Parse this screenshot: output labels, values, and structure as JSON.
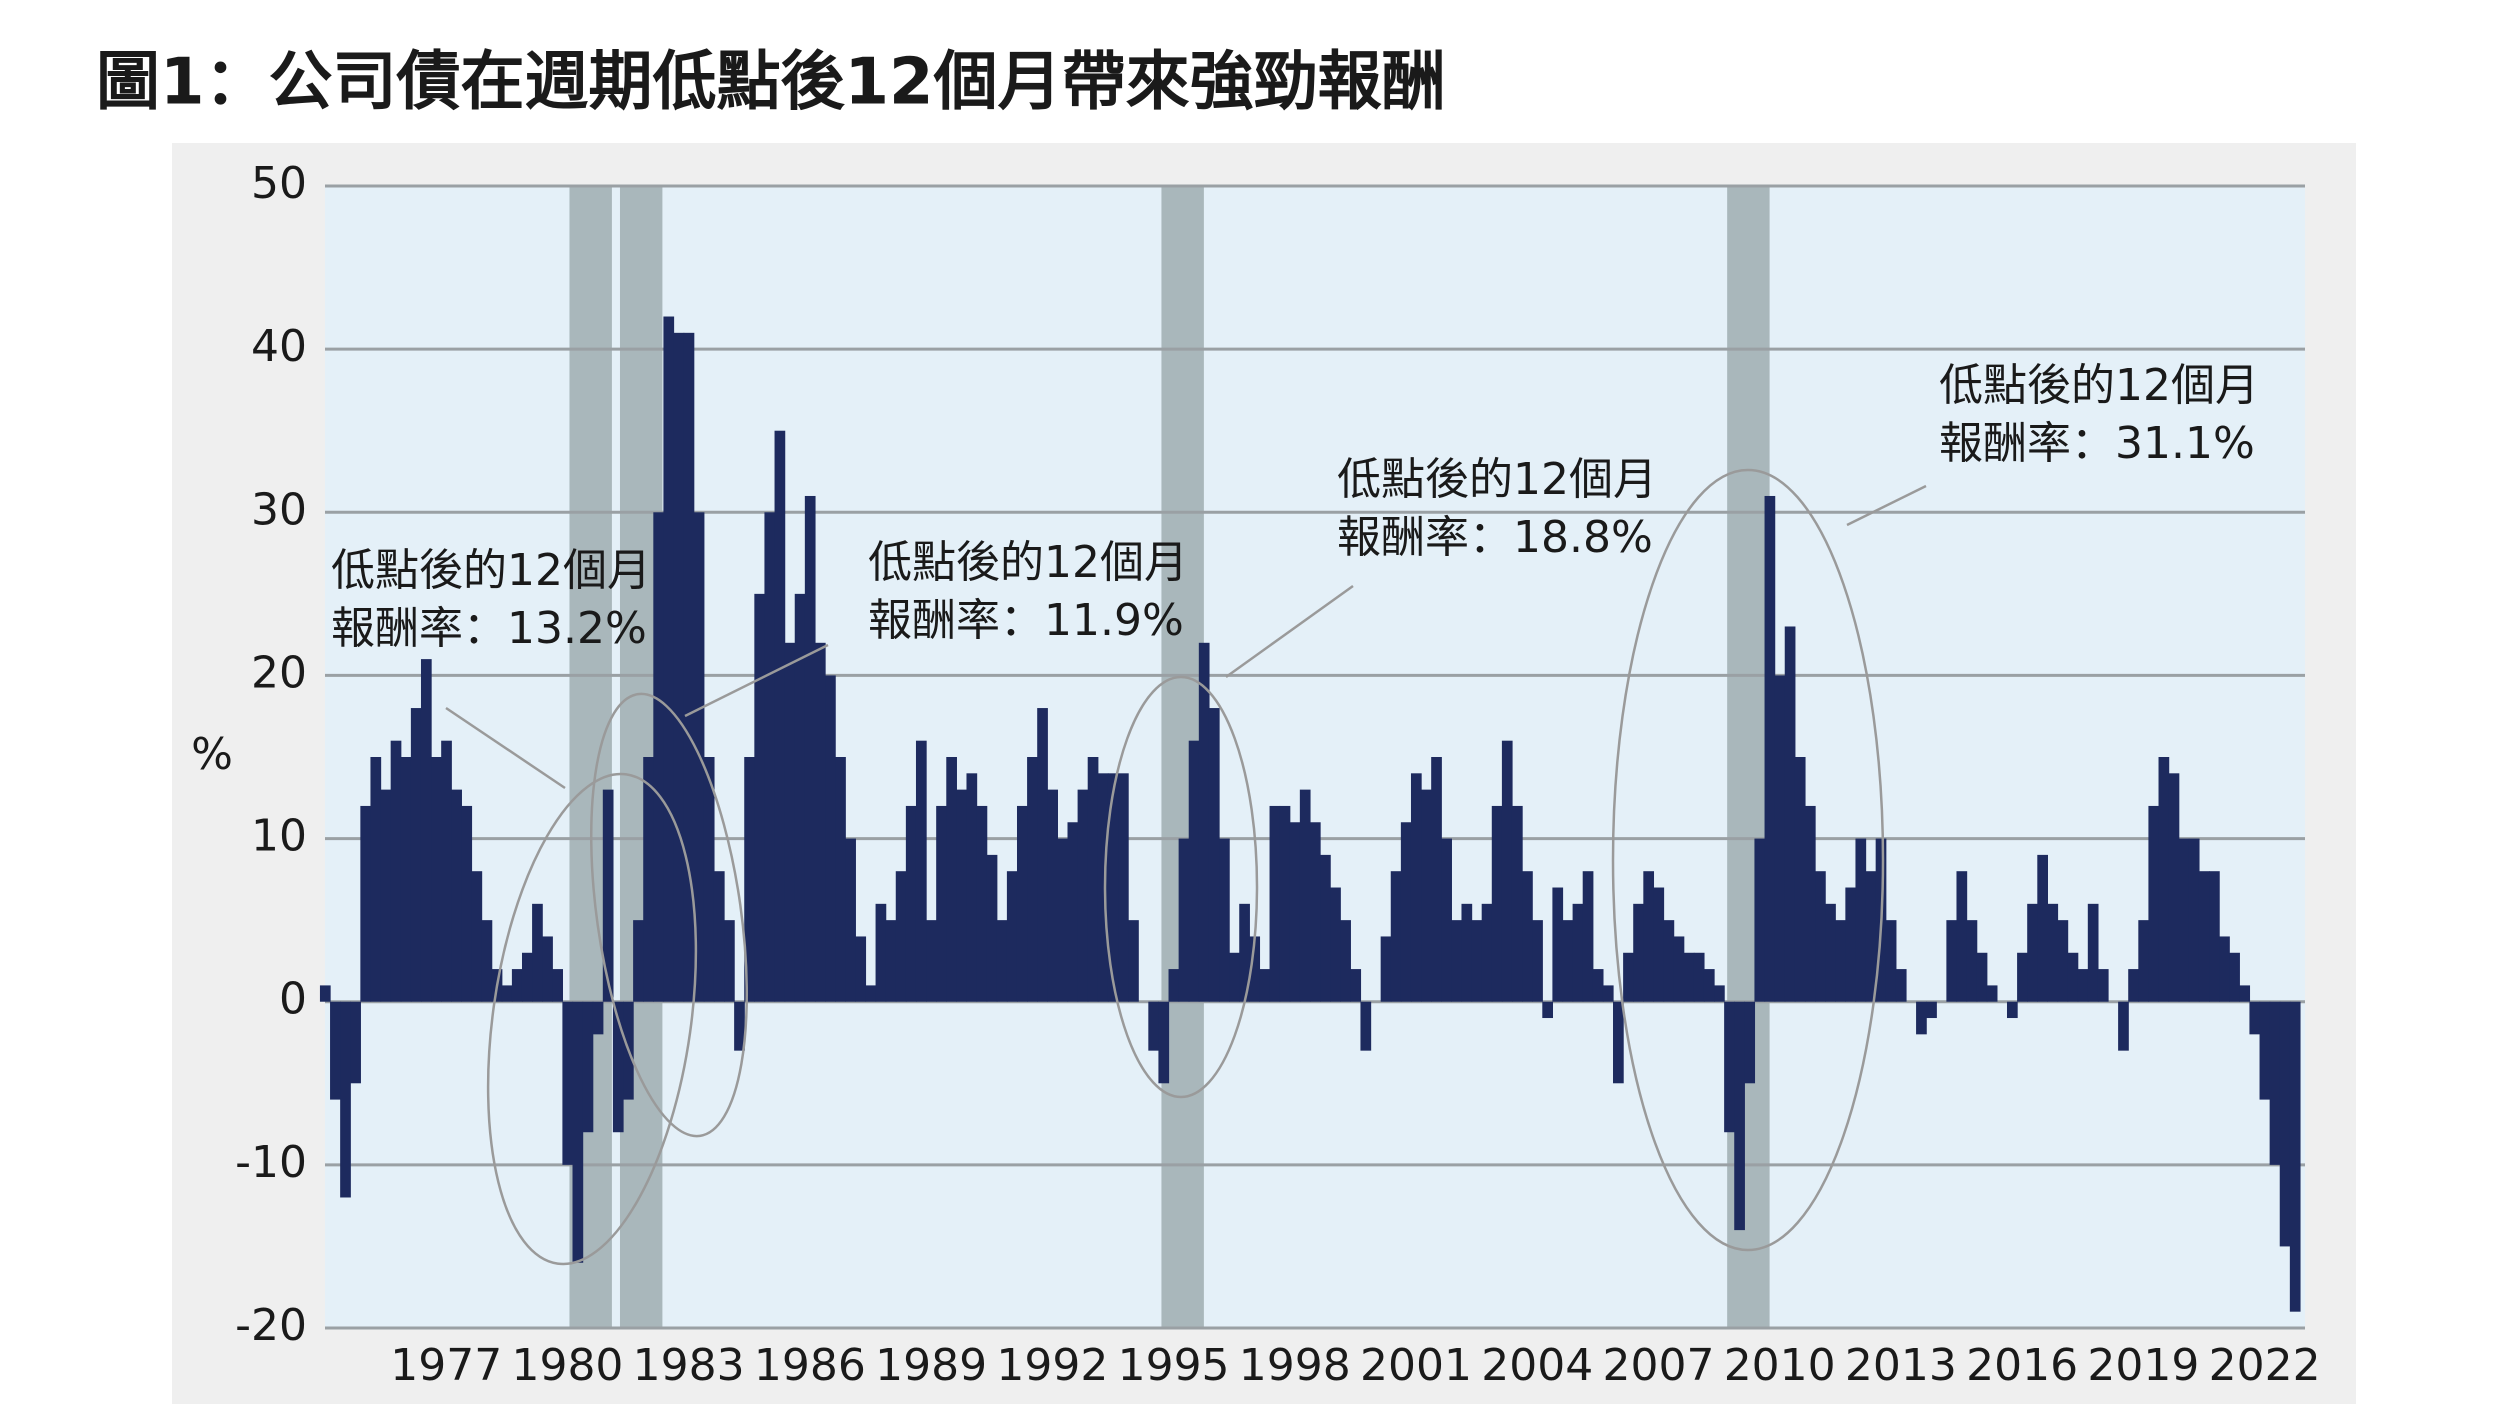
{
  "chart_data": {
    "type": "bar",
    "title": "圖1：公司債在週期低點後12個月帶來強勁報酬",
    "y_label": "%",
    "color": "#1d2a5e",
    "recession_color": "#a9b7bb",
    "grid": true,
    "xlim": [
      1974,
      2023
    ],
    "xticks": [
      1977,
      1980,
      1983,
      1986,
      1989,
      1992,
      1995,
      1998,
      2001,
      2004,
      2007,
      2010,
      2013,
      2016,
      2019,
      2022
    ],
    "ylim": [
      -20,
      50
    ],
    "yticks": [
      -20,
      -10,
      0,
      10,
      20,
      30,
      40,
      50
    ],
    "recessions": [
      [
        1980.05,
        1981.1
      ],
      [
        1981.3,
        1982.35
      ],
      [
        1994.7,
        1995.75
      ],
      [
        2008.7,
        2009.75
      ]
    ],
    "annotations": [
      {
        "lines": [
          "低點後的12個月",
          "報酬率：13.2%"
        ]
      },
      {
        "lines": [
          "低點後的12個月",
          "報酬率：11.9%"
        ]
      },
      {
        "lines": [
          "低點後的12個月",
          "報酬率：18.8%"
        ]
      },
      {
        "lines": [
          "低點後的12個月",
          "報酬率：31.1%"
        ]
      }
    ],
    "x": [
      1974,
      1974.25,
      1974.5,
      1974.75,
      1975,
      1975.25,
      1975.5,
      1975.75,
      1976,
      1976.25,
      1976.5,
      1976.75,
      1977,
      1977.25,
      1977.5,
      1977.75,
      1978,
      1978.25,
      1978.5,
      1978.75,
      1979,
      1979.25,
      1979.5,
      1979.75,
      1980,
      1980.25,
      1980.5,
      1980.75,
      1981,
      1981.25,
      1981.5,
      1981.75,
      1982,
      1982.25,
      1982.5,
      1982.75,
      1983,
      1983.25,
      1983.5,
      1983.75,
      1984,
      1984.25,
      1984.5,
      1984.75,
      1985,
      1985.25,
      1985.5,
      1985.75,
      1986,
      1986.25,
      1986.5,
      1986.75,
      1987,
      1987.25,
      1987.5,
      1987.75,
      1988,
      1988.25,
      1988.5,
      1988.75,
      1989,
      1989.25,
      1989.5,
      1989.75,
      1990,
      1990.25,
      1990.5,
      1990.75,
      1991,
      1991.25,
      1991.5,
      1991.75,
      1992,
      1992.25,
      1992.5,
      1992.75,
      1993,
      1993.25,
      1993.5,
      1993.75,
      1994,
      1994.25,
      1994.5,
      1994.75,
      1995,
      1995.25,
      1995.5,
      1995.75,
      1996,
      1996.25,
      1996.5,
      1996.75,
      1997,
      1997.25,
      1997.5,
      1997.75,
      1998,
      1998.25,
      1998.5,
      1998.75,
      1999,
      1999.25,
      1999.5,
      1999.75,
      2000,
      2000.25,
      2000.5,
      2000.75,
      2001,
      2001.25,
      2001.5,
      2001.75,
      2002,
      2002.25,
      2002.5,
      2002.75,
      2003,
      2003.25,
      2003.5,
      2003.75,
      2004,
      2004.25,
      2004.5,
      2004.75,
      2005,
      2005.25,
      2005.5,
      2005.75,
      2006,
      2006.25,
      2006.5,
      2006.75,
      2007,
      2007.25,
      2007.5,
      2007.75,
      2008,
      2008.25,
      2008.5,
      2008.75,
      2009,
      2009.25,
      2009.5,
      2009.75,
      2010,
      2010.25,
      2010.5,
      2010.75,
      2011,
      2011.25,
      2011.5,
      2011.75,
      2012,
      2012.25,
      2012.5,
      2012.75,
      2013,
      2013.25,
      2013.5,
      2013.75,
      2014,
      2014.25,
      2014.5,
      2014.75,
      2015,
      2015.25,
      2015.5,
      2015.75,
      2016,
      2016.25,
      2016.5,
      2016.75,
      2017,
      2017.25,
      2017.5,
      2017.75,
      2018,
      2018.25,
      2018.5,
      2018.75,
      2019,
      2019.25,
      2019.5,
      2019.75,
      2020,
      2020.25,
      2020.5,
      2020.75,
      2021,
      2021.25,
      2021.5,
      2021.75,
      2022,
      2022.25,
      2022.5,
      2022.75
    ],
    "values": [
      1,
      -6,
      -12,
      -5,
      12,
      15,
      13,
      16,
      15,
      18,
      21,
      15,
      16,
      13,
      12,
      8,
      5,
      2,
      1,
      2,
      3,
      6,
      4,
      2,
      -10,
      -16,
      -8,
      -2,
      13,
      -8,
      -6,
      5,
      15,
      30,
      42,
      41,
      41,
      30,
      15,
      8,
      5,
      -3,
      15,
      25,
      30,
      35,
      22,
      25,
      31,
      22,
      20,
      15,
      10,
      4,
      1,
      6,
      5,
      8,
      12,
      16,
      5,
      12,
      15,
      13,
      14,
      12,
      9,
      5,
      8,
      12,
      15,
      18,
      13,
      10,
      11,
      13,
      15,
      14,
      14,
      14,
      5,
      0,
      -3,
      -5,
      2,
      10,
      16,
      22,
      18,
      10,
      3,
      6,
      4,
      2,
      12,
      12,
      11,
      13,
      11,
      9,
      7,
      5,
      2,
      -3,
      0,
      4,
      8,
      11,
      14,
      13,
      15,
      10,
      5,
      6,
      5,
      6,
      12,
      16,
      12,
      8,
      5,
      -1,
      7,
      5,
      6,
      8,
      2,
      1,
      -5,
      3,
      6,
      8,
      7,
      5,
      4,
      3,
      3,
      2,
      1,
      -8,
      -14,
      -5,
      10,
      31,
      20,
      23,
      15,
      12,
      8,
      6,
      5,
      7,
      10,
      8,
      10,
      5,
      2,
      0,
      -2,
      -1,
      0,
      5,
      8,
      5,
      3,
      1,
      0,
      -1,
      3,
      6,
      9,
      6,
      5,
      3,
      2,
      6,
      2,
      0,
      -3,
      2,
      5,
      12,
      15,
      14,
      10,
      10,
      8,
      8,
      4,
      3,
      1,
      -2,
      -6,
      -10,
      -15,
      -19
    ]
  }
}
